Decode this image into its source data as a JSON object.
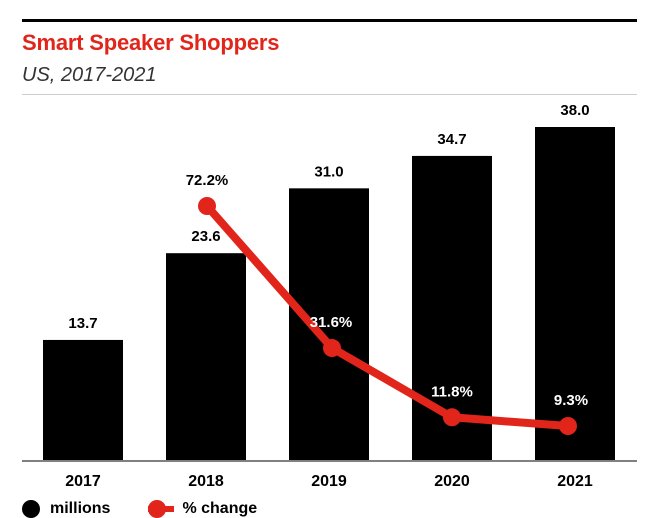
{
  "header": {
    "title": "Smart Speaker Shoppers",
    "subtitle": "US, 2017-2021"
  },
  "colors": {
    "accent": "#e1251b",
    "bars": "#000000",
    "text": "#000000"
  },
  "legend": {
    "series1_label": "millions",
    "series2_label": "% change"
  },
  "chart_data": {
    "type": "bar",
    "title": "Smart Speaker Shoppers",
    "subtitle": "US, 2017-2021",
    "categories": [
      "2017",
      "2018",
      "2019",
      "2020",
      "2021"
    ],
    "series": [
      {
        "name": "millions",
        "type": "bar",
        "values": [
          13.7,
          23.6,
          31.0,
          34.7,
          38.0
        ],
        "labels": [
          "13.7",
          "23.6",
          "31.0",
          "34.7",
          "38.0"
        ]
      },
      {
        "name": "% change",
        "type": "line",
        "values": [
          null,
          72.2,
          31.6,
          11.8,
          9.3
        ],
        "labels": [
          "",
          "72.2%",
          "31.6%",
          "11.8%",
          "9.3%"
        ]
      }
    ],
    "ylim": [
      0,
      38.0
    ],
    "y2lim": [
      0,
      100
    ],
    "legend": "bottom-left",
    "grid": false
  }
}
